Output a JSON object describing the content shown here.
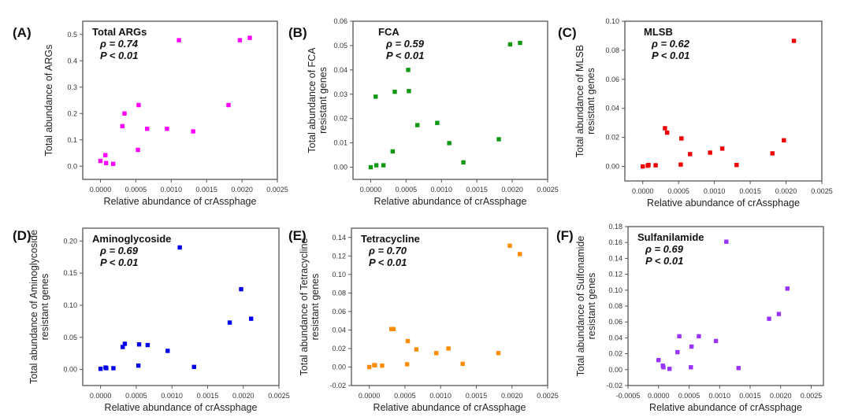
{
  "chart_data": [
    {
      "type": "scatter",
      "panel_label": "(A)",
      "annotation": [
        "Total ARGs",
        "ρ = 0.74",
        "P < 0.01"
      ],
      "xlabel": "Relative abundance of crAssphage",
      "ylabel": [
        "Total abundance of ARGs"
      ],
      "xlim": [
        -0.00025,
        0.0025
      ],
      "ylim": [
        -0.05,
        0.55
      ],
      "xticks": [
        0,
        0.0005,
        0.001,
        0.0015,
        0.002,
        0.0025
      ],
      "xtick_labels": [
        "0.0000",
        "0.0005",
        "0.0010",
        "0.0015",
        "0.0020",
        "0.0025"
      ],
      "yticks": [
        0,
        0.1,
        0.2,
        0.3,
        0.4,
        0.5
      ],
      "ytick_labels": [
        "0.0",
        "0.1",
        "0.2",
        "0.3",
        "0.4",
        "0.5"
      ],
      "color": "#ff00ff",
      "x": [
        0,
        7e-05,
        8e-05,
        0.00018,
        0.00031,
        0.00034,
        0.00053,
        0.00054,
        0.00066,
        0.00094,
        0.00111,
        0.00131,
        0.00181,
        0.00197,
        0.00211
      ],
      "y": [
        0.02,
        0.042,
        0.012,
        0.009,
        0.152,
        0.2,
        0.062,
        0.232,
        0.142,
        0.142,
        0.478,
        0.132,
        0.232,
        0.478,
        0.487
      ]
    },
    {
      "type": "scatter",
      "panel_label": "(B)",
      "annotation": [
        "FCA",
        "ρ = 0.59",
        "P < 0.01"
      ],
      "xlabel": "Relative abundance of crAssphage",
      "ylabel": [
        "Total abundance of FCA",
        "resistant genes"
      ],
      "xlim": [
        -0.00025,
        0.0025
      ],
      "ylim": [
        -0.005,
        0.06
      ],
      "xticks": [
        0,
        0.0005,
        0.001,
        0.0015,
        0.002,
        0.0025
      ],
      "xtick_labels": [
        "0.0000",
        "0.0005",
        "0.0010",
        "0.0015",
        "0.0020",
        "0.0025"
      ],
      "yticks": [
        0,
        0.01,
        0.02,
        0.03,
        0.04,
        0.05,
        0.06
      ],
      "ytick_labels": [
        "0.00",
        "0.01",
        "0.02",
        "0.03",
        "0.04",
        "0.05",
        "0.06"
      ],
      "color": "#119911",
      "x": [
        0,
        7e-05,
        8e-05,
        0.00018,
        0.00031,
        0.00034,
        0.00053,
        0.00054,
        0.00066,
        0.00094,
        0.00111,
        0.00131,
        0.00181,
        0.00197,
        0.00211
      ],
      "y": [
        0.0,
        0.029,
        0.0008,
        0.0008,
        0.0065,
        0.031,
        0.04,
        0.0313,
        0.0173,
        0.0182,
        0.0099,
        0.002,
        0.0115,
        0.0505,
        0.0511
      ]
    },
    {
      "type": "scatter",
      "panel_label": "(C)",
      "annotation": [
        "MLSB",
        "ρ = 0.62",
        "P < 0.01"
      ],
      "xlabel": "Relative abundance of crAssphage",
      "ylabel": [
        "Total abundance of MLSB",
        "resistant genes"
      ],
      "xlim": [
        -0.00025,
        0.0025
      ],
      "ylim": [
        -0.01,
        0.1
      ],
      "xticks": [
        0,
        0.0005,
        0.001,
        0.0015,
        0.002,
        0.0025
      ],
      "xtick_labels": [
        "0.0000",
        "0.0005",
        "0.0010",
        "0.0015",
        "0.0020",
        "0.0025"
      ],
      "yticks": [
        0,
        0.02,
        0.04,
        0.06,
        0.08,
        0.1
      ],
      "ytick_labels": [
        "0.00",
        "0.02",
        "0.04",
        "0.06",
        "0.08",
        "0.10"
      ],
      "color": "#ee0000",
      "x": [
        0,
        7e-05,
        8e-05,
        0.00018,
        0.00031,
        0.00034,
        0.00053,
        0.00054,
        0.00066,
        0.00094,
        0.00111,
        0.00131,
        0.00181,
        0.00197,
        0.00211
      ],
      "y": [
        0.0,
        0.0005,
        0.001,
        0.0008,
        0.0263,
        0.0233,
        0.0013,
        0.0193,
        0.0085,
        0.0095,
        0.0123,
        0.001,
        0.009,
        0.018,
        0.0865
      ]
    },
    {
      "type": "scatter",
      "panel_label": "(D)",
      "annotation": [
        "Aminoglycoside",
        "ρ = 0.69",
        "P < 0.01"
      ],
      "xlabel": "Relative abundance of crAssphage",
      "ylabel": [
        "Total abundance of Aminoglycoside",
        "resistant genes"
      ],
      "xlim": [
        -0.00025,
        0.0025
      ],
      "ylim": [
        -0.025,
        0.22
      ],
      "xticks": [
        0,
        0.0005,
        0.001,
        0.0015,
        0.002,
        0.0025
      ],
      "xtick_labels": [
        "0.0000",
        "0.0005",
        "0.0010",
        "0.0015",
        "0.0020",
        "0.0025"
      ],
      "yticks": [
        0,
        0.05,
        0.1,
        0.15,
        0.2
      ],
      "ytick_labels": [
        "0.00",
        "0.05",
        "0.10",
        "0.15",
        "0.20"
      ],
      "color": "#0000ee",
      "x": [
        0,
        7e-05,
        8e-05,
        0.00018,
        0.00031,
        0.00034,
        0.00053,
        0.00054,
        0.00066,
        0.00094,
        0.00111,
        0.00131,
        0.00181,
        0.00197,
        0.00211
      ],
      "y": [
        0.001,
        0.003,
        0.002,
        0.002,
        0.035,
        0.04,
        0.006,
        0.039,
        0.038,
        0.029,
        0.19,
        0.004,
        0.073,
        0.125,
        0.079
      ]
    },
    {
      "type": "scatter",
      "panel_label": "(E)",
      "annotation": [
        "Tetracycline",
        "ρ = 0.70",
        "P < 0.01"
      ],
      "xlabel": "Relative abundance of crAssphage",
      "ylabel": [
        "Total abundance of Tetracycline",
        "resistant genes"
      ],
      "xlim": [
        -0.00025,
        0.0025
      ],
      "ylim": [
        -0.02,
        0.15
      ],
      "xticks": [
        0,
        0.0005,
        0.001,
        0.0015,
        0.002,
        0.0025
      ],
      "xtick_labels": [
        "0.0000",
        "0.0005",
        "0.0010",
        "0.0015",
        "0.0020",
        "0.0025"
      ],
      "yticks": [
        -0.02,
        0,
        0.02,
        0.04,
        0.06,
        0.08,
        0.1,
        0.12,
        0.14
      ],
      "ytick_labels": [
        "-0.02",
        "0.00",
        "0.02",
        "0.04",
        "0.06",
        "0.08",
        "0.10",
        "0.12",
        "0.14"
      ],
      "color": "#ff8c00",
      "x": [
        0,
        7e-05,
        8e-05,
        0.00018,
        0.00031,
        0.00034,
        0.00053,
        0.00054,
        0.00066,
        0.00094,
        0.00111,
        0.00131,
        0.00181,
        0.00197,
        0.00211
      ],
      "y": [
        0.0,
        0.002,
        0.002,
        0.0015,
        0.041,
        0.041,
        0.003,
        0.028,
        0.019,
        0.015,
        0.02,
        0.0035,
        0.015,
        0.131,
        0.122
      ]
    },
    {
      "type": "scatter",
      "panel_label": "(F)",
      "annotation": [
        "Sulfanilamide",
        "ρ = 0.69",
        "P < 0.01"
      ],
      "xlabel": "Relative abundance of crAssphage",
      "ylabel": [
        "Total abundance of Sulfonamide",
        "resistant genes"
      ],
      "xlim": [
        -0.0005,
        0.0027
      ],
      "ylim": [
        -0.02,
        0.18
      ],
      "xticks": [
        -0.0005,
        0,
        0.0005,
        0.001,
        0.0015,
        0.002,
        0.0025
      ],
      "xtick_labels": [
        "-0.0005",
        "0.0000",
        "0.0005",
        "0.0010",
        "0.0015",
        "0.0020",
        "0.0025"
      ],
      "yticks": [
        -0.02,
        0,
        0.02,
        0.04,
        0.06,
        0.08,
        0.1,
        0.12,
        0.14,
        0.16,
        0.18
      ],
      "ytick_labels": [
        "-0.02",
        "0.00",
        "0.02",
        "0.04",
        "0.06",
        "0.08",
        "0.10",
        "0.12",
        "0.14",
        "0.16",
        "0.18"
      ],
      "color": "#9933ff",
      "x": [
        0,
        7e-05,
        8e-05,
        0.00018,
        0.00031,
        0.00034,
        0.00053,
        0.00054,
        0.00066,
        0.00094,
        0.00111,
        0.00131,
        0.00181,
        0.00197,
        0.00211
      ],
      "y": [
        0.012,
        0.005,
        0.003,
        0.001,
        0.022,
        0.042,
        0.003,
        0.029,
        0.042,
        0.036,
        0.161,
        0.002,
        0.064,
        0.07,
        0.102
      ]
    }
  ]
}
